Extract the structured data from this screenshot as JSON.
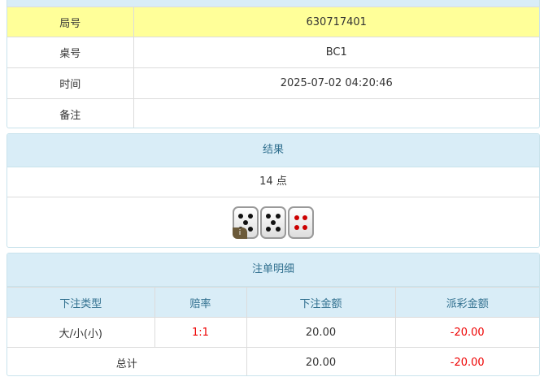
{
  "info": {
    "rows": [
      {
        "label": "局号",
        "value": "630717401"
      },
      {
        "label": "桌号",
        "value": "BC1"
      },
      {
        "label": "时间",
        "value": "2025-07-02 04:20:46"
      },
      {
        "label": "备注",
        "value": ""
      }
    ]
  },
  "result": {
    "title": "结果",
    "points": "14 点",
    "dice": [
      5,
      5,
      4
    ],
    "info_badge": "i"
  },
  "bets": {
    "title": "注单明细",
    "headers": [
      "下注类型",
      "赔率",
      "下注金额",
      "派彩金额"
    ],
    "rows": [
      {
        "type": "大/小(小)",
        "odds": "1:1",
        "amount": "20.00",
        "payout": "-20.00"
      }
    ],
    "total": {
      "label": "总计",
      "amount": "20.00",
      "payout": "-20.00"
    }
  },
  "colors": {
    "header_bg": "#d9edf7",
    "highlight": "#ffff99",
    "negative": "#e00000"
  }
}
